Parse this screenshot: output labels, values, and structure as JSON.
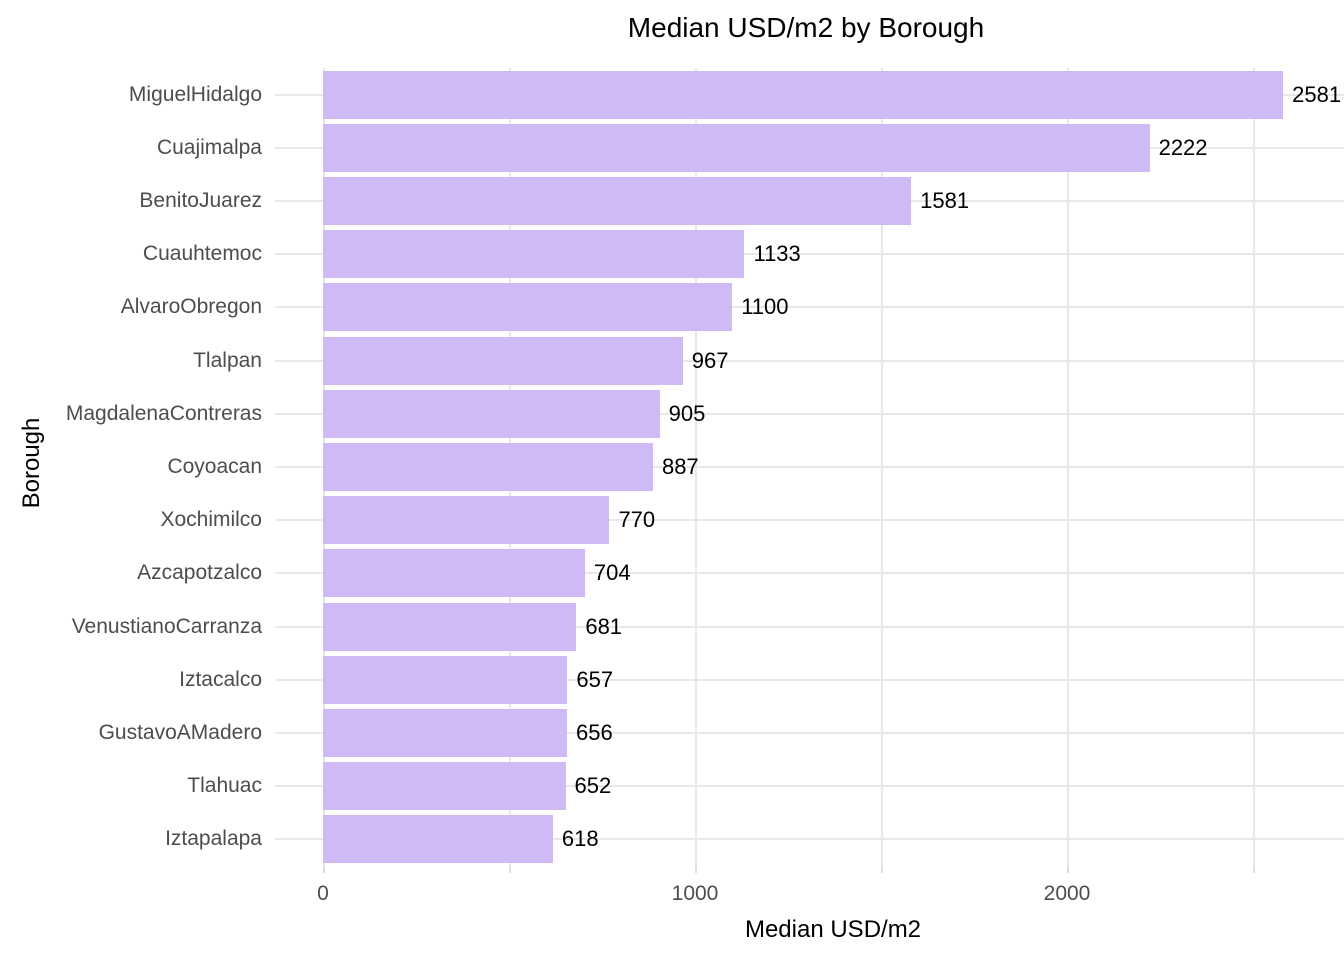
{
  "title": "Median USD/m2 by Borough",
  "axes": {
    "x_label": "Median USD/m2",
    "y_label": "Borough"
  },
  "chart_data": {
    "type": "bar",
    "orientation": "horizontal",
    "title": "Median USD/m2 by Borough",
    "xlabel": "Median USD/m2",
    "ylabel": "Borough",
    "categories": [
      "MiguelHidalgo",
      "Cuajimalpa",
      "BenitoJuarez",
      "Cuauhtemoc",
      "AlvaroObregon",
      "Tlalpan",
      "MagdalenaContreras",
      "Coyoacan",
      "Xochimilco",
      "Azcapotzalco",
      "VenustianoCarranza",
      "Iztacalco",
      "GustavoAMadero",
      "Tlahuac",
      "Iztapalapa"
    ],
    "values": [
      2581,
      2222,
      1581,
      1133,
      1100,
      967,
      905,
      887,
      770,
      704,
      681,
      657,
      656,
      652,
      618
    ],
    "bar_labels": [
      "2581",
      "2222",
      "1581",
      "1133",
      "1100",
      "967",
      "905",
      "887",
      "770",
      "704",
      "681",
      "657",
      "656",
      "652",
      "618"
    ],
    "xlim": [
      0,
      2745
    ],
    "x_tick_labels": [
      "0",
      "1000",
      "2000"
    ],
    "x_tick_values": [
      0,
      1000,
      2000
    ],
    "x_grid_values": [
      0,
      500,
      1000,
      1500,
      2000,
      2500
    ],
    "grid": true,
    "legend": "none",
    "colors": {
      "bar_fill": "#cfbaf5",
      "grid": "#e8e8e8",
      "tick_mark": "#dedede",
      "axis_text": "#4d4d4d",
      "value_label": "#000000",
      "title_text": "#000000",
      "background": "#ffffff"
    }
  }
}
